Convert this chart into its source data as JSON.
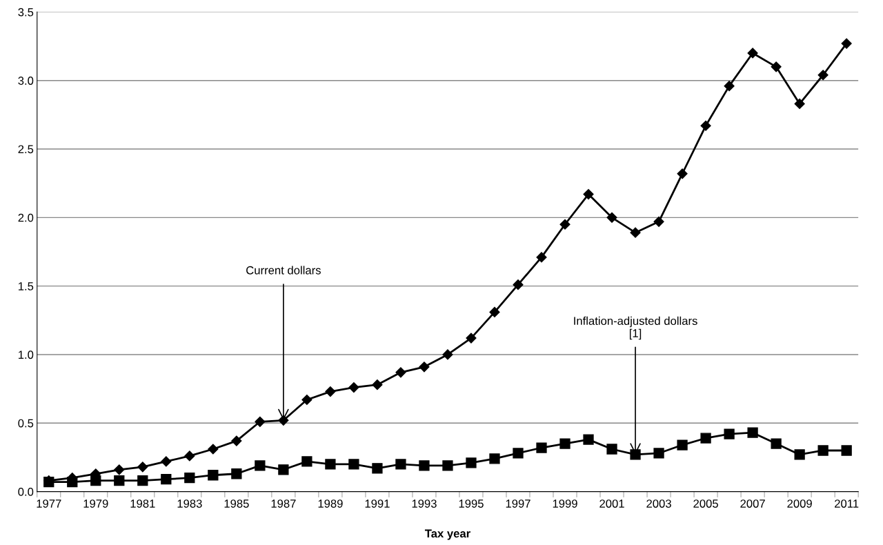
{
  "chart_data": {
    "type": "line",
    "xlabel": "Tax year",
    "x": [
      1977,
      1978,
      1979,
      1980,
      1981,
      1982,
      1983,
      1984,
      1985,
      1986,
      1987,
      1988,
      1989,
      1990,
      1991,
      1992,
      1993,
      1994,
      1995,
      1996,
      1997,
      1998,
      1999,
      2000,
      2001,
      2002,
      2003,
      2004,
      2005,
      2006,
      2007,
      2008,
      2009,
      2010,
      2011
    ],
    "series": [
      {
        "color": "#000000",
        "marker": "diamond",
        "values": [
          0.08,
          0.1,
          0.13,
          0.16,
          0.18,
          0.22,
          0.26,
          0.31,
          0.37,
          0.51,
          0.52,
          0.67,
          0.73,
          0.76,
          0.78,
          0.87,
          0.91,
          1.0,
          1.12,
          1.31,
          1.51,
          1.71,
          1.95,
          2.17,
          2.0,
          1.89,
          1.97,
          2.32,
          2.67,
          2.96,
          3.2,
          3.1,
          2.83,
          3.04,
          3.27
        ]
      },
      {
        "color": "#000000",
        "marker": "square",
        "values": [
          0.07,
          0.07,
          0.08,
          0.08,
          0.08,
          0.09,
          0.1,
          0.12,
          0.13,
          0.19,
          0.16,
          0.22,
          0.2,
          0.2,
          0.17,
          0.2,
          0.19,
          0.19,
          0.21,
          0.24,
          0.28,
          0.32,
          0.35,
          0.38,
          0.31,
          0.27,
          0.28,
          0.34,
          0.39,
          0.42,
          0.43,
          0.35,
          0.27,
          0.3,
          0.3
        ]
      }
    ],
    "xlim": [
      1976.5,
      2011.5
    ],
    "xticks": [
      1977,
      1979,
      1981,
      1983,
      1985,
      1987,
      1989,
      1991,
      1993,
      1995,
      1997,
      1999,
      2001,
      2003,
      2005,
      2007,
      2009,
      2011
    ],
    "ylim": [
      0,
      3.5
    ],
    "yticks": [
      {
        "value": 0,
        "label": "0.0"
      },
      {
        "value": 0.5,
        "label": "0.5"
      },
      {
        "value": 1,
        "label": "1.0"
      },
      {
        "value": 1.5,
        "label": "1.5"
      },
      {
        "value": 2,
        "label": "2.0"
      },
      {
        "value": 2.5,
        "label": "2.5"
      },
      {
        "value": 3,
        "label": "3.0"
      },
      {
        "value": 3.5,
        "label": "3.5"
      }
    ],
    "grid": "y",
    "line_style": "solid",
    "annotations": [
      {
        "text": "Current dollars",
        "x": 1987,
        "y": 0.52
      },
      {
        "text": "Inflation-adjusted dollars\n[1]",
        "x": 2002,
        "y": 0.27
      }
    ]
  }
}
